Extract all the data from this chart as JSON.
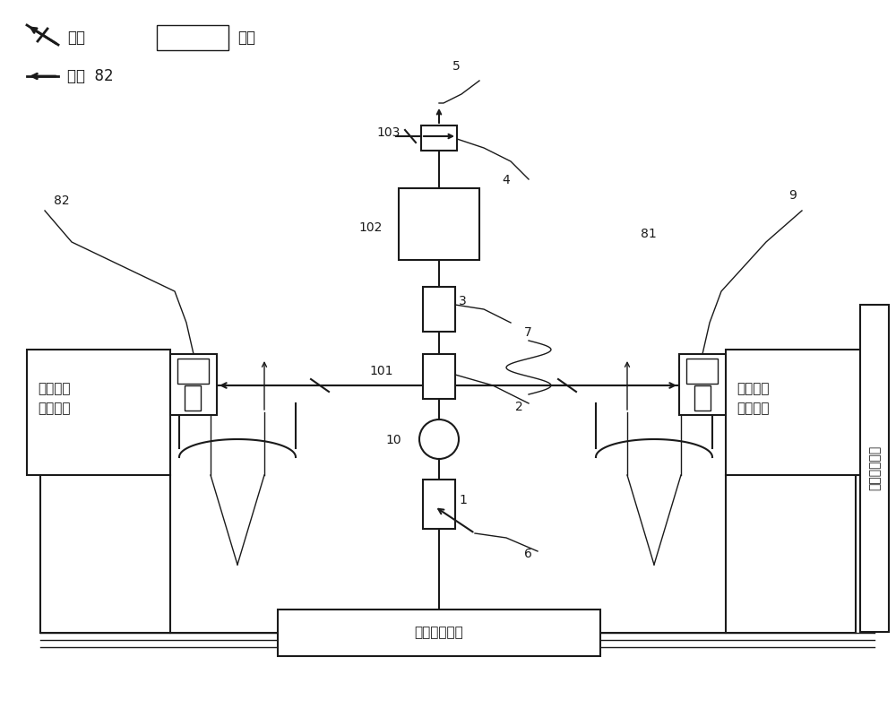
{
  "bg_color": "#ffffff",
  "line_color": "#1a1a1a",
  "labels": {
    "low_system": "低空模拟\n采集系统",
    "high_system": "高空量子\n采集系统",
    "env_system": "环境传\n感系统",
    "control": "智能控制单元",
    "fiber_legend": "光纤",
    "elec_legend": "电路",
    "light_legend": "光线  82"
  }
}
